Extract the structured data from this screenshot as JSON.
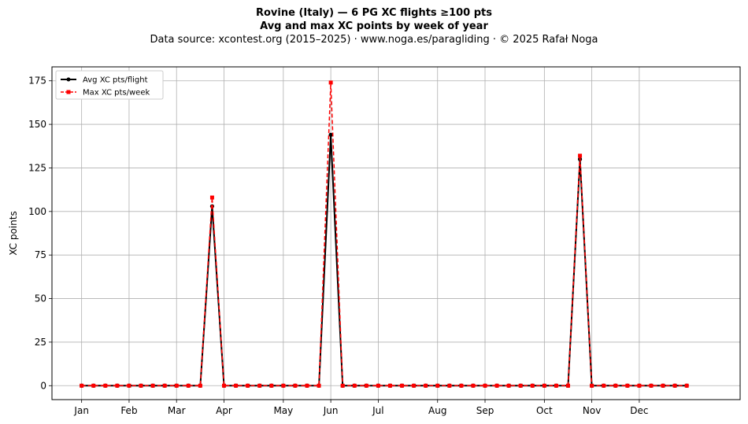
{
  "title": {
    "line1": "Rovine (Italy)  —  6 PG XC flights ≥100 pts",
    "line2": "Avg and max XC points by week of year",
    "line3": "Data source: xcontest.org (2015–2025)  ·  www.noga.es/paragliding  ·  © 2025 Rafał Noga"
  },
  "chart_data": {
    "type": "line",
    "title": "Rovine (Italy)  —  6 PG XC flights ≥100 pts",
    "subtitle": "Avg and max XC points by week of year",
    "xlabel": "",
    "ylabel": "XC points",
    "xlim": [
      -2.5,
      55.5
    ],
    "ylim": [
      -8,
      183
    ],
    "yticks": [
      0,
      25,
      50,
      75,
      100,
      125,
      150,
      175
    ],
    "xticks": [
      {
        "week": 0,
        "label": "Jan"
      },
      {
        "week": 4,
        "label": "Feb"
      },
      {
        "week": 8,
        "label": "Mar"
      },
      {
        "week": 12,
        "label": "Apr"
      },
      {
        "week": 17,
        "label": "May"
      },
      {
        "week": 21,
        "label": "Jun"
      },
      {
        "week": 25,
        "label": "Jul"
      },
      {
        "week": 30,
        "label": "Aug"
      },
      {
        "week": 34,
        "label": "Sep"
      },
      {
        "week": 39,
        "label": "Oct"
      },
      {
        "week": 43,
        "label": "Nov"
      },
      {
        "week": 47,
        "label": "Dec"
      }
    ],
    "grid": true,
    "legend_position": "top-left",
    "x": [
      0,
      1,
      2,
      3,
      4,
      5,
      6,
      7,
      8,
      9,
      10,
      11,
      12,
      13,
      14,
      15,
      16,
      17,
      18,
      19,
      20,
      21,
      22,
      23,
      24,
      25,
      26,
      27,
      28,
      29,
      30,
      31,
      32,
      33,
      34,
      35,
      36,
      37,
      38,
      39,
      40,
      41,
      42,
      43,
      44,
      45,
      46,
      47,
      48,
      49,
      50,
      51
    ],
    "series": [
      {
        "name": "Avg XC pts/flight",
        "color": "#000000",
        "style": "solid",
        "marker": "circle",
        "values": [
          0,
          0,
          0,
          0,
          0,
          0,
          0,
          0,
          0,
          0,
          0,
          103,
          0,
          0,
          0,
          0,
          0,
          0,
          0,
          0,
          0,
          144,
          0,
          0,
          0,
          0,
          0,
          0,
          0,
          0,
          0,
          0,
          0,
          0,
          0,
          0,
          0,
          0,
          0,
          0,
          0,
          0,
          130,
          0,
          0,
          0,
          0,
          0,
          0,
          0,
          0,
          0
        ]
      },
      {
        "name": "Max XC pts/week",
        "color": "#ff0000",
        "style": "dashed",
        "marker": "square",
        "values": [
          0,
          0,
          0,
          0,
          0,
          0,
          0,
          0,
          0,
          0,
          0,
          108,
          0,
          0,
          0,
          0,
          0,
          0,
          0,
          0,
          0,
          174,
          0,
          0,
          0,
          0,
          0,
          0,
          0,
          0,
          0,
          0,
          0,
          0,
          0,
          0,
          0,
          0,
          0,
          0,
          0,
          0,
          132,
          0,
          0,
          0,
          0,
          0,
          0,
          0,
          0,
          0
        ]
      }
    ]
  }
}
